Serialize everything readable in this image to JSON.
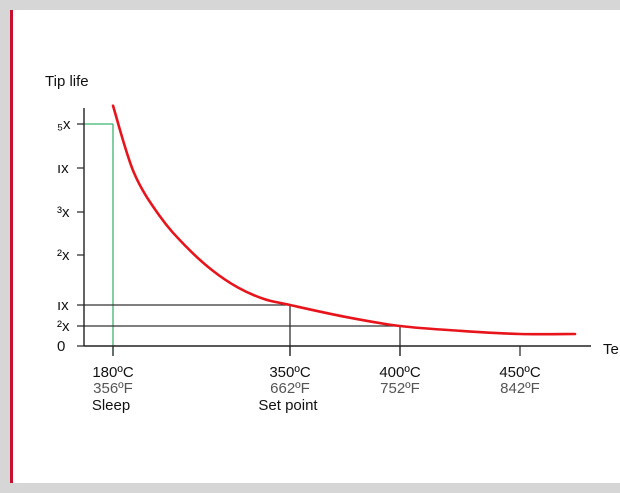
{
  "colors": {
    "background": "#d6d6d6",
    "panel": "#ffffff",
    "accent_border": "#c8102e",
    "curve": "#e8141c",
    "sleep_guide": "#3cb371",
    "guide": "#333333",
    "axis": "#222222",
    "fahrenheit_text": "#555555"
  },
  "chart_data": {
    "type": "line",
    "title": "",
    "ylabel": "Tip life",
    "xlabel": "Te",
    "y_ticks": [
      {
        "label": "0",
        "value": 0
      },
      {
        "label": "²x",
        "value": 0.5
      },
      {
        "label": "ıx",
        "value": 1
      },
      {
        "label": "²x",
        "value": 2
      },
      {
        "label": "³x",
        "value": 3
      },
      {
        "label": "ıx",
        "value": 4
      },
      {
        "label": "₅x",
        "value": 5
      }
    ],
    "x_ticks": [
      {
        "celsius": "180ºC",
        "fahrenheit": "356ºF",
        "note": "Sleep",
        "value": 180
      },
      {
        "celsius": "350ºC",
        "fahrenheit": "662ºF",
        "note": "Set point",
        "value": 350
      },
      {
        "celsius": "400ºC",
        "fahrenheit": "752ºF",
        "note": "",
        "value": 400
      },
      {
        "celsius": "450ºC",
        "fahrenheit": "842ºF",
        "note": "",
        "value": 450
      }
    ],
    "xlim": [
      180,
      450
    ],
    "ylim": [
      0,
      5.3
    ],
    "series": [
      {
        "x": [
          180,
          200,
          225,
          250,
          275,
          300,
          325,
          350,
          375,
          400,
          425,
          450,
          475
        ],
        "y": [
          5.5,
          3.9,
          2.9,
          2.2,
          1.7,
          1.35,
          1.12,
          1.0,
          0.72,
          0.5,
          0.38,
          0.3,
          0.3
        ]
      }
    ],
    "guides": [
      {
        "x": 180,
        "y": 5
      },
      {
        "x": 350,
        "y": 1
      },
      {
        "x": 400,
        "y": 0.5
      }
    ]
  }
}
